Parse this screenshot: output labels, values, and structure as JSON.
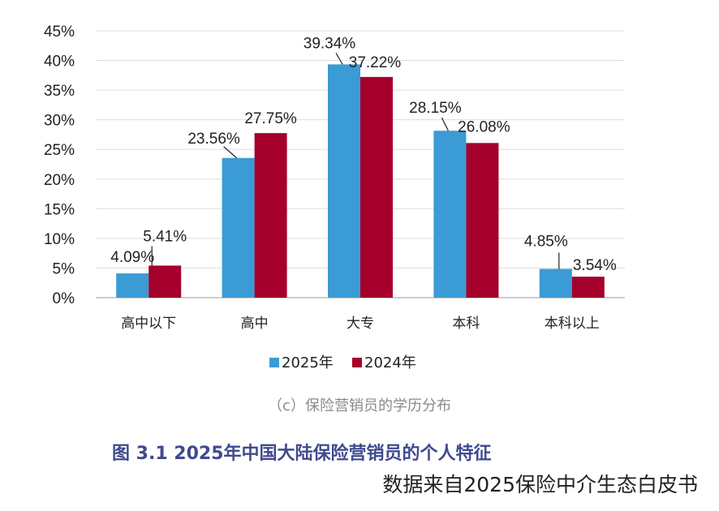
{
  "chart_data": {
    "type": "bar",
    "categories": [
      "高中以下",
      "高中",
      "大专",
      "本科",
      "本科以上"
    ],
    "series": [
      {
        "name": "2025年",
        "color": "#3a9bd5",
        "values": [
          4.09,
          23.56,
          39.34,
          28.15,
          4.85
        ],
        "labels": [
          "4.09%",
          "23.56%",
          "39.34%",
          "28.15%",
          "4.85%"
        ]
      },
      {
        "name": "2024年",
        "color": "#a5002b",
        "values": [
          5.41,
          27.75,
          37.22,
          26.08,
          3.54
        ],
        "labels": [
          "5.41%",
          "27.75%",
          "37.22%",
          "26.08%",
          "3.54%"
        ]
      }
    ],
    "yticks": [
      "0%",
      "5%",
      "10%",
      "15%",
      "20%",
      "25%",
      "30%",
      "35%",
      "40%",
      "45%"
    ],
    "ylim": [
      0,
      45
    ],
    "grid": true,
    "legend_position": "bottom",
    "xlabel": "",
    "ylabel": ""
  },
  "caption": {
    "subcaption": "（c）保险营销员的学历分布",
    "figure_title": "图 3.1  2025年中国大陆保险营销员的个人特征",
    "source": "数据来自2025保险中介生态白皮书"
  }
}
